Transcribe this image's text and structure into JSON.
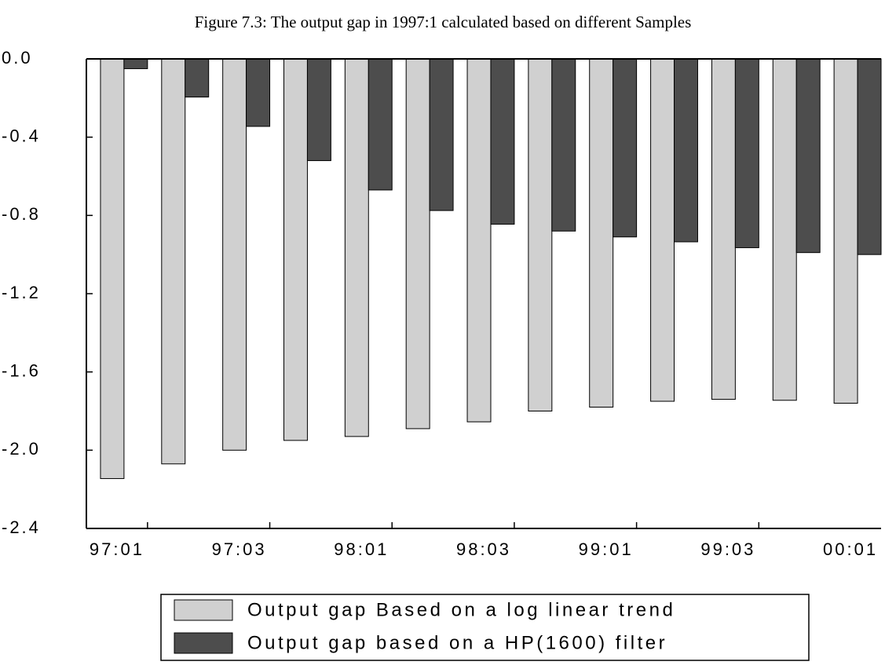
{
  "chart_data": {
    "type": "bar",
    "title": "Figure 7.3: The output gap in 1997:1 calculated based on different Samples",
    "categories": [
      "97:01",
      null,
      "97:03",
      null,
      "98:01",
      null,
      "98:03",
      null,
      "99:01",
      null,
      "99:03",
      null,
      "00:01"
    ],
    "series": [
      {
        "name": "Output gap Based on a log linear trend",
        "color": "#d0d0d0",
        "values": [
          -2.145,
          -2.07,
          -2.0,
          -1.95,
          -1.93,
          -1.89,
          -1.855,
          -1.8,
          -1.78,
          -1.75,
          -1.74,
          -1.745,
          -1.76
        ]
      },
      {
        "name": "Output gap based on a HP(1600) filter",
        "color": "#4d4d4d",
        "values": [
          -0.05,
          -0.195,
          -0.345,
          -0.52,
          -0.67,
          -0.775,
          -0.845,
          -0.88,
          -0.91,
          -0.935,
          -0.965,
          -0.99,
          -1.0
        ]
      }
    ],
    "ylim": [
      -2.4,
      0
    ],
    "yticks": [
      {
        "value": 0,
        "label": "0.0"
      },
      -0.4,
      -0.8,
      -1.2,
      -1.6,
      {
        "value": -2,
        "label": "-2.0"
      },
      -2.4
    ]
  }
}
